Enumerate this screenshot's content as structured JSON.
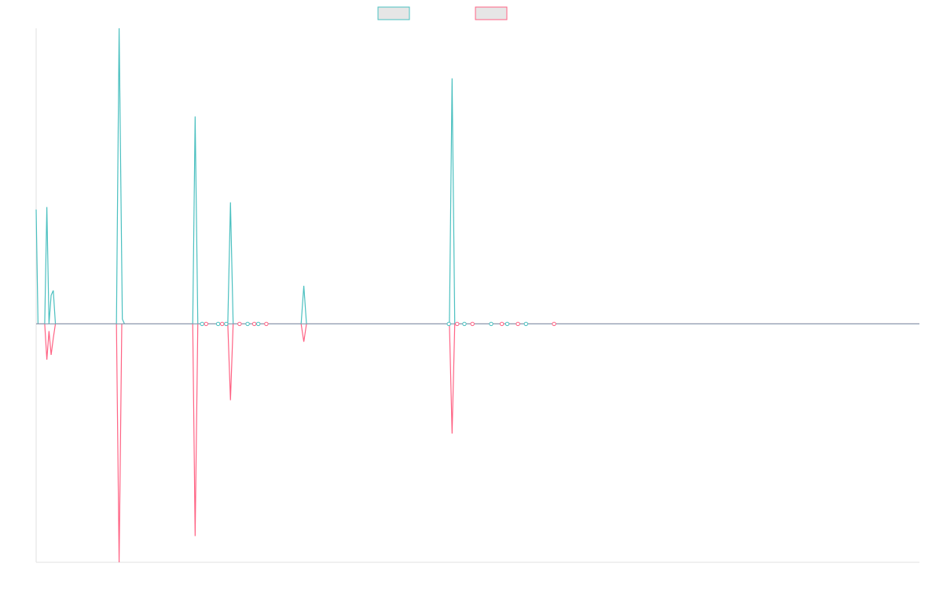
{
  "chart_data": {
    "type": "line",
    "title": "",
    "xlabel": "",
    "ylabel": "",
    "grid": false,
    "legend": {
      "placement": "top-center"
    },
    "x_domain": [
      0,
      330
    ],
    "ylim": [
      -1.0,
      1.24
    ],
    "colors": {
      "series_a": "#4bc0c0",
      "series_b": "#ff6384",
      "legend_fill": "#e6e6e6",
      "axis": "#e0e0e0"
    },
    "series": [
      {
        "key": "a",
        "color": "#4bc0c0",
        "points": [
          {
            "x": 0,
            "y": 0.48
          },
          {
            "x": 0.7,
            "y": 0
          },
          {
            "x": 3.2,
            "y": 0
          },
          {
            "x": 4,
            "y": 0.49
          },
          {
            "x": 4.8,
            "y": 0
          },
          {
            "x": 5.6,
            "y": 0.12
          },
          {
            "x": 6.4,
            "y": 0.14
          },
          {
            "x": 7.2,
            "y": 0
          },
          {
            "x": 30,
            "y": 0
          },
          {
            "x": 31,
            "y": 1.24
          },
          {
            "x": 32.2,
            "y": 0.02
          },
          {
            "x": 33,
            "y": 0
          },
          {
            "x": 58.5,
            "y": 0
          },
          {
            "x": 59.4,
            "y": 0.87
          },
          {
            "x": 60.4,
            "y": 0
          },
          {
            "x": 71.6,
            "y": 0
          },
          {
            "x": 72.6,
            "y": 0.51
          },
          {
            "x": 73.6,
            "y": 0
          },
          {
            "x": 99,
            "y": 0
          },
          {
            "x": 100,
            "y": 0.16
          },
          {
            "x": 101,
            "y": 0
          },
          {
            "x": 154.4,
            "y": 0
          },
          {
            "x": 155.4,
            "y": 1.03
          },
          {
            "x": 156.4,
            "y": 0
          },
          {
            "x": 330,
            "y": 0
          }
        ]
      },
      {
        "key": "b",
        "color": "#ff6384",
        "points": [
          {
            "x": 0,
            "y": 0
          },
          {
            "x": 3.2,
            "y": 0
          },
          {
            "x": 4,
            "y": -0.15
          },
          {
            "x": 4.8,
            "y": -0.03
          },
          {
            "x": 5.6,
            "y": -0.13
          },
          {
            "x": 6.4,
            "y": -0.06
          },
          {
            "x": 7.2,
            "y": 0
          },
          {
            "x": 30,
            "y": 0
          },
          {
            "x": 31,
            "y": -1.0
          },
          {
            "x": 32,
            "y": 0
          },
          {
            "x": 58.5,
            "y": 0
          },
          {
            "x": 59.4,
            "y": -0.89
          },
          {
            "x": 60.4,
            "y": 0
          },
          {
            "x": 71.6,
            "y": 0
          },
          {
            "x": 72.6,
            "y": -0.32
          },
          {
            "x": 73.6,
            "y": 0
          },
          {
            "x": 99,
            "y": 0
          },
          {
            "x": 100,
            "y": -0.075
          },
          {
            "x": 101,
            "y": 0
          },
          {
            "x": 154.4,
            "y": 0
          },
          {
            "x": 155.4,
            "y": -0.46
          },
          {
            "x": 156.4,
            "y": 0
          },
          {
            "x": 330,
            "y": 0
          }
        ]
      }
    ],
    "markers": [
      62,
      63.5,
      68,
      69.5,
      71,
      76,
      79,
      81.5,
      83,
      86,
      154.2,
      157.3,
      160,
      163,
      170,
      174,
      176,
      180,
      183,
      193.5
    ]
  }
}
